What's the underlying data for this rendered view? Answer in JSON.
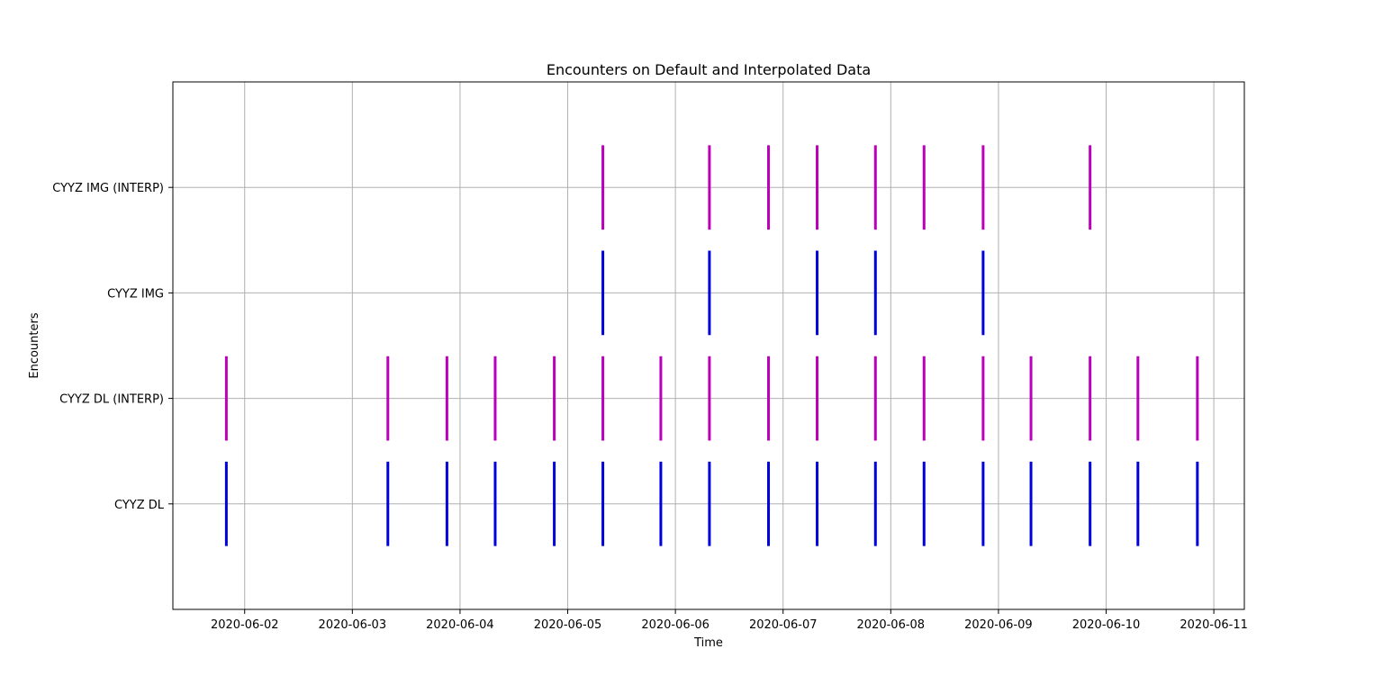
{
  "chart_data": {
    "type": "eventplot",
    "title": "Encounters on Default and Interpolated Data",
    "xlabel": "Time",
    "ylabel": "Encounters",
    "grid": true,
    "legend": "none",
    "xlim": [
      "2020-06-01 08:00",
      "2020-06-11 06:48"
    ],
    "x_ticks": [
      "2020-06-02",
      "2020-06-03",
      "2020-06-04",
      "2020-06-05",
      "2020-06-06",
      "2020-06-07",
      "2020-06-08",
      "2020-06-09",
      "2020-06-10",
      "2020-06-11"
    ],
    "y_categories": [
      "CYYZ DL",
      "CYYZ DL (INTERP)",
      "CYYZ IMG",
      "CYYZ IMG (INTERP)"
    ],
    "series": [
      {
        "name": "CYYZ DL",
        "color": "#0000dd",
        "events": [
          "2020-06-01 19:55",
          "2020-06-03 07:55",
          "2020-06-03 21:05",
          "2020-06-04 07:50",
          "2020-06-04 21:00",
          "2020-06-05 07:50",
          "2020-06-05 20:45",
          "2020-06-06 07:35",
          "2020-06-06 20:45",
          "2020-06-07 07:35",
          "2020-06-07 20:35",
          "2020-06-08 07:25",
          "2020-06-08 20:35",
          "2020-06-09 07:15",
          "2020-06-09 20:25",
          "2020-06-10 07:05",
          "2020-06-10 20:20"
        ]
      },
      {
        "name": "CYYZ DL (INTERP)",
        "color": "#bb00bb",
        "events": [
          "2020-06-01 19:55",
          "2020-06-03 07:55",
          "2020-06-03 21:05",
          "2020-06-04 07:50",
          "2020-06-04 21:00",
          "2020-06-05 07:50",
          "2020-06-05 20:45",
          "2020-06-06 07:35",
          "2020-06-06 20:45",
          "2020-06-07 07:35",
          "2020-06-07 20:35",
          "2020-06-08 07:25",
          "2020-06-08 20:35",
          "2020-06-09 07:15",
          "2020-06-09 20:25",
          "2020-06-10 07:05",
          "2020-06-10 20:20"
        ]
      },
      {
        "name": "CYYZ IMG",
        "color": "#0000dd",
        "events": [
          "2020-06-05 07:50",
          "2020-06-06 07:35",
          "2020-06-07 07:35",
          "2020-06-07 20:35",
          "2020-06-08 20:35"
        ]
      },
      {
        "name": "CYYZ IMG (INTERP)",
        "color": "#bb00bb",
        "events": [
          "2020-06-05 07:50",
          "2020-06-06 07:35",
          "2020-06-06 20:45",
          "2020-06-07 07:35",
          "2020-06-07 20:35",
          "2020-06-08 07:25",
          "2020-06-08 20:35",
          "2020-06-09 20:25"
        ]
      }
    ]
  }
}
